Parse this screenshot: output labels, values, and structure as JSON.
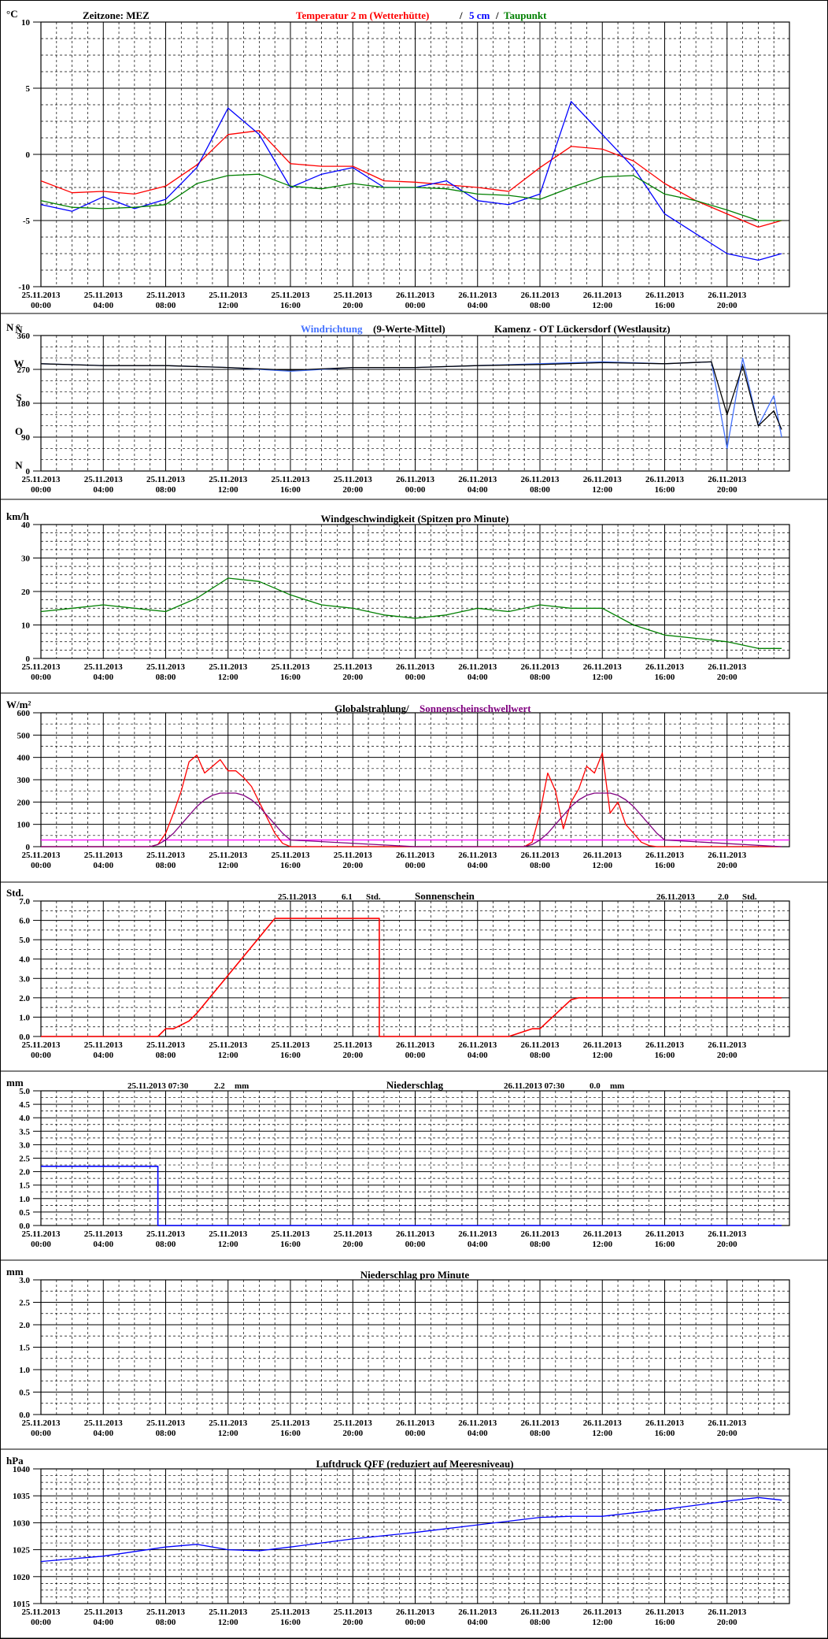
{
  "header": {
    "zeitzone": "Zeitzone: MEZ",
    "temp_label": "Temperatur 2 m (Wetterhütte)",
    "sep": "/",
    "cm5_label": "5 cm",
    "sep2": "/",
    "taupunkt_label": "Taupunkt",
    "station": "Kamenz - OT Lückersdorf (Westlausitz)"
  },
  "colors": {
    "temp": "#ff0000",
    "cm5": "#0000ff",
    "dew": "#008000",
    "wind_dir": "#4472ff",
    "wind_dir_mean": "#000000",
    "wind_speed": "#008000",
    "radiation": "#ff0000",
    "sun_threshold": "#800080",
    "threshold_line": "#ff00ff",
    "sunshine": "#ff0000",
    "precip": "#0000ff",
    "pressure": "#0000ff"
  },
  "x_axis_ticks": [
    [
      "25.11.2013",
      "00:00"
    ],
    [
      "25.11.2013",
      "04:00"
    ],
    [
      "25.11.2013",
      "08:00"
    ],
    [
      "25.11.2013",
      "12:00"
    ],
    [
      "25.11.2013",
      "16:00"
    ],
    [
      "25.11.2013",
      "20:00"
    ],
    [
      "26.11.2013",
      "00:00"
    ],
    [
      "26.11.2013",
      "04:00"
    ],
    [
      "26.11.2013",
      "08:00"
    ],
    [
      "26.11.2013",
      "12:00"
    ],
    [
      "26.11.2013",
      "16:00"
    ],
    [
      "26.11.2013",
      "20:00"
    ]
  ],
  "chart_data": [
    {
      "id": "temperature",
      "type": "line",
      "ylabel": "°C",
      "ylim": [
        -10,
        10
      ],
      "yticks": [
        10,
        5,
        0,
        -5,
        -10
      ],
      "x_hours": [
        0,
        2,
        4,
        6,
        8,
        10,
        12,
        14,
        16,
        18,
        20,
        22,
        24,
        26,
        28,
        30,
        32,
        34,
        36,
        38,
        40,
        42,
        44,
        46,
        47.5
      ],
      "series": [
        {
          "name": "Temperatur 2 m (Wetterhütte)",
          "color_key": "temp",
          "values": [
            -2,
            -2.9,
            -2.8,
            -3,
            -2.4,
            -0.8,
            1.5,
            1.8,
            -0.7,
            -0.9,
            -0.9,
            -2,
            -2.1,
            -2.3,
            -2.5,
            -2.8,
            -1,
            0.6,
            0.4,
            -0.5,
            -2.2,
            -3.5,
            -4.5,
            -5.5,
            -5
          ]
        },
        {
          "name": "5 cm",
          "color_key": "cm5",
          "values": [
            -3.8,
            -4.3,
            -3.2,
            -4.1,
            -3.4,
            -1,
            3.5,
            1.5,
            -2.5,
            -1.5,
            -1,
            -2.5,
            -2.5,
            -2,
            -3.5,
            -3.8,
            -3,
            4,
            1.5,
            -1,
            -4.5,
            -6,
            -7.5,
            -8,
            -7.5
          ]
        },
        {
          "name": "Taupunkt",
          "color_key": "dew",
          "values": [
            -3.5,
            -4,
            -4.1,
            -4,
            -3.8,
            -2.2,
            -1.6,
            -1.5,
            -2.4,
            -2.6,
            -2.2,
            -2.5,
            -2.5,
            -2.6,
            -3,
            -3.1,
            -3.4,
            -2.5,
            -1.7,
            -1.6,
            -3,
            -3.5,
            -4.2,
            -5,
            -5
          ]
        }
      ]
    },
    {
      "id": "wind_direction",
      "type": "line",
      "title": "Windrichtung (9-Werte-Mittel)",
      "title_a": "Windrichtung",
      "title_b": " (9-Werte-Mittel)",
      "ylabel": "N °",
      "ylim": [
        0,
        360
      ],
      "yticks": [
        360,
        270,
        180,
        90,
        0
      ],
      "compass": [
        "N",
        "W",
        "S",
        "O",
        "N"
      ],
      "x_hours": [
        0,
        4,
        8,
        12,
        16,
        20,
        24,
        28,
        32,
        36,
        40,
        43,
        44,
        45,
        46,
        47,
        47.5
      ],
      "series": [
        {
          "name": "Windrichtung",
          "values": [
            285,
            280,
            280,
            275,
            265,
            275,
            275,
            280,
            285,
            290,
            285,
            290,
            60,
            300,
            120,
            200,
            90
          ]
        },
        {
          "name": "9-Werte-Mittel",
          "values": [
            285,
            280,
            280,
            275,
            268,
            275,
            275,
            280,
            283,
            288,
            285,
            290,
            150,
            280,
            120,
            160,
            110
          ]
        }
      ]
    },
    {
      "id": "wind_speed",
      "type": "line",
      "title": "Windgeschwindigkeit (Spitzen pro Minute)",
      "ylabel": "km/h",
      "ylim": [
        0,
        40
      ],
      "yticks": [
        40,
        30,
        20,
        10,
        0
      ],
      "x_hours": [
        0,
        2,
        4,
        6,
        8,
        10,
        12,
        14,
        16,
        18,
        20,
        22,
        24,
        26,
        28,
        30,
        32,
        34,
        36,
        38,
        40,
        42,
        44,
        46,
        47.5
      ],
      "series": [
        {
          "name": "Windgeschwindigkeit",
          "values": [
            14,
            15,
            16,
            15,
            14,
            18,
            24,
            23,
            19,
            16,
            15,
            13,
            12,
            13,
            15,
            14,
            16,
            15,
            15,
            10,
            7,
            6,
            5,
            3,
            3
          ]
        }
      ]
    },
    {
      "id": "radiation",
      "type": "line",
      "title": "Globalstrahlung/ Sonnenscheinschwellwert",
      "title_a": "Globalstrahlung/",
      "title_b": " Sonnenscheinschwellwert",
      "ylabel": "W/m²",
      "ylim": [
        0,
        600
      ],
      "yticks": [
        600,
        500,
        400,
        300,
        200,
        100,
        0
      ],
      "threshold": 30,
      "x_hours": [
        0,
        7,
        7.5,
        8,
        8.5,
        9,
        9.5,
        10,
        10.5,
        11,
        11.5,
        12,
        12.5,
        13,
        13.5,
        14,
        14.5,
        15,
        15.5,
        16,
        24,
        31,
        31.5,
        32,
        32.5,
        33,
        33.5,
        34,
        34.5,
        35,
        35.5,
        36,
        36.5,
        37,
        37.5,
        38,
        38.5,
        39,
        39.5,
        40,
        47.5
      ],
      "series": [
        {
          "name": "Globalstrahlung",
          "values": [
            0,
            0,
            10,
            60,
            150,
            250,
            380,
            410,
            330,
            360,
            390,
            340,
            340,
            310,
            270,
            200,
            130,
            60,
            15,
            0,
            0,
            0,
            20,
            150,
            330,
            250,
            80,
            200,
            260,
            360,
            330,
            420,
            150,
            200,
            100,
            60,
            20,
            5,
            0,
            0,
            0
          ]
        },
        {
          "name": "Sonnenscheinschwellwert",
          "values": [
            0,
            0,
            10,
            30,
            60,
            100,
            140,
            180,
            210,
            230,
            240,
            240,
            240,
            230,
            210,
            180,
            140,
            100,
            60,
            30,
            0,
            0,
            10,
            30,
            60,
            100,
            140,
            180,
            210,
            230,
            240,
            240,
            240,
            230,
            210,
            180,
            140,
            100,
            60,
            30,
            0
          ]
        }
      ]
    },
    {
      "id": "sunshine",
      "type": "line",
      "title": "Sonnenschein",
      "ylabel": "Std.",
      "ylim": [
        0,
        7
      ],
      "yticks": [
        7.0,
        6.0,
        5.0,
        4.0,
        3.0,
        2.0,
        1.0,
        0.0
      ],
      "summary": [
        {
          "date": "25.11.2013",
          "value": "6.1",
          "unit": "Std."
        },
        {
          "date": "26.11.2013",
          "value": "2.0",
          "unit": "Std."
        }
      ],
      "x_hours": [
        0,
        7.5,
        8,
        8.5,
        9,
        9.5,
        10,
        15,
        21.7,
        21.7,
        30,
        30,
        31.5,
        32,
        34,
        34.5,
        36,
        47.5
      ],
      "series": [
        {
          "name": "Sonnenschein",
          "values": [
            0,
            0,
            0.4,
            0.4,
            0.6,
            0.8,
            1.2,
            6.1,
            6.1,
            0,
            0,
            0,
            0.4,
            0.4,
            1.9,
            2.0,
            2.0,
            2.0
          ]
        }
      ]
    },
    {
      "id": "precipitation",
      "type": "line",
      "title": "Niederschlag",
      "ylabel": "mm",
      "ylim": [
        0,
        5
      ],
      "yticks": [
        5.0,
        4.5,
        4.0,
        3.5,
        3.0,
        2.5,
        2.0,
        1.5,
        1.0,
        0.5,
        0.0
      ],
      "summary": [
        {
          "date": "25.11.2013 07:30",
          "value": "2.2",
          "unit": "mm"
        },
        {
          "date": "26.11.2013 07:30",
          "value": "0.0",
          "unit": "mm"
        }
      ],
      "x_hours": [
        0,
        7.5,
        7.5,
        47.5
      ],
      "series": [
        {
          "name": "Niederschlag",
          "values": [
            2.2,
            2.2,
            0,
            0
          ]
        }
      ]
    },
    {
      "id": "precip_per_minute",
      "type": "line",
      "title": "Niederschlag pro Minute",
      "ylabel": "mm",
      "ylim": [
        0,
        3
      ],
      "yticks": [
        3.0,
        2.5,
        2.0,
        1.5,
        1.0,
        0.5,
        0.0
      ],
      "x_hours": [],
      "series": []
    },
    {
      "id": "pressure",
      "type": "line",
      "title": "Luftdruck QFF (reduziert auf Meeresniveau)",
      "ylabel": "hPa",
      "ylim": [
        1015,
        1040
      ],
      "yticks": [
        1040,
        1035,
        1030,
        1025,
        1020,
        1015
      ],
      "x_hours": [
        0,
        4,
        8,
        10,
        12,
        14,
        16,
        20,
        24,
        28,
        32,
        34,
        36,
        40,
        44,
        46,
        47.5
      ],
      "series": [
        {
          "name": "Luftdruck QFF",
          "values": [
            1022.8,
            1023.8,
            1025.5,
            1026,
            1025,
            1024.8,
            1025.5,
            1027,
            1028.2,
            1029.6,
            1031,
            1031.2,
            1031.2,
            1032.5,
            1034,
            1034.7,
            1034.2
          ]
        }
      ]
    }
  ]
}
